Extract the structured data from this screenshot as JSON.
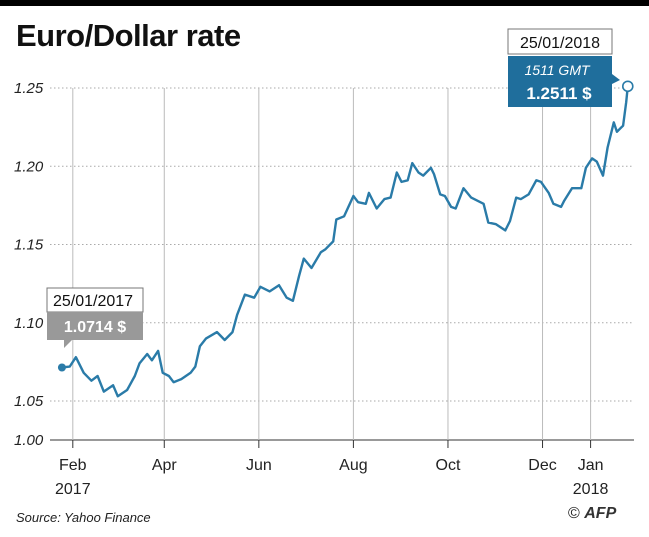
{
  "title": "Euro/Dollar rate",
  "source": "Source: Yahoo Finance",
  "credit": {
    "copyright_symbol": "©",
    "agency": "AFP"
  },
  "annotations": {
    "start": {
      "date": "25/01/2017",
      "value": "1.0714 $"
    },
    "end": {
      "date": "25/01/2018",
      "time": "1511 GMT",
      "value": "1.2511 $"
    }
  },
  "colors": {
    "line": "#2a7ba8",
    "label_gray": "#999999",
    "label_blue": "#1f6e9c"
  },
  "chart_data": {
    "type": "line",
    "title": "Euro/Dollar rate",
    "xlabel": "",
    "ylabel": "",
    "ylim": [
      1.0,
      1.25
    ],
    "grid": true,
    "y_ticks": [
      "1.25",
      "1.20",
      "1.15",
      "1.10",
      "1.05",
      "1.00"
    ],
    "x_ticks": [
      {
        "label": "Feb",
        "sub": "2017",
        "date": "2017-02-01"
      },
      {
        "label": "Apr",
        "sub": "",
        "date": "2017-04-01"
      },
      {
        "label": "Jun",
        "sub": "",
        "date": "2017-06-01"
      },
      {
        "label": "Aug",
        "sub": "",
        "date": "2017-08-01"
      },
      {
        "label": "Oct",
        "sub": "",
        "date": "2017-10-01"
      },
      {
        "label": "Dec",
        "sub": "",
        "date": "2017-12-01"
      },
      {
        "label": "Jan",
        "sub": "2018",
        "date": "2018-01-01"
      }
    ],
    "series": [
      {
        "points": [
          [
            "2017-01-25",
            1.0714
          ],
          [
            "2017-01-30",
            1.072
          ],
          [
            "2017-02-03",
            1.078
          ],
          [
            "2017-02-08",
            1.068
          ],
          [
            "2017-02-13",
            1.063
          ],
          [
            "2017-02-17",
            1.066
          ],
          [
            "2017-02-21",
            1.056
          ],
          [
            "2017-02-27",
            1.06
          ],
          [
            "2017-03-02",
            1.053
          ],
          [
            "2017-03-08",
            1.057
          ],
          [
            "2017-03-13",
            1.066
          ],
          [
            "2017-03-16",
            1.074
          ],
          [
            "2017-03-21",
            1.08
          ],
          [
            "2017-03-24",
            1.076
          ],
          [
            "2017-03-28",
            1.082
          ],
          [
            "2017-03-31",
            1.068
          ],
          [
            "2017-04-04",
            1.066
          ],
          [
            "2017-04-07",
            1.062
          ],
          [
            "2017-04-12",
            1.064
          ],
          [
            "2017-04-18",
            1.068
          ],
          [
            "2017-04-21",
            1.072
          ],
          [
            "2017-04-24",
            1.085
          ],
          [
            "2017-04-28",
            1.09
          ],
          [
            "2017-05-05",
            1.094
          ],
          [
            "2017-05-10",
            1.089
          ],
          [
            "2017-05-15",
            1.094
          ],
          [
            "2017-05-18",
            1.105
          ],
          [
            "2017-05-23",
            1.118
          ],
          [
            "2017-05-29",
            1.116
          ],
          [
            "2017-06-02",
            1.123
          ],
          [
            "2017-06-08",
            1.12
          ],
          [
            "2017-06-14",
            1.124
          ],
          [
            "2017-06-19",
            1.116
          ],
          [
            "2017-06-23",
            1.114
          ],
          [
            "2017-06-27",
            1.13
          ],
          [
            "2017-06-30",
            1.141
          ],
          [
            "2017-07-05",
            1.135
          ],
          [
            "2017-07-11",
            1.145
          ],
          [
            "2017-07-14",
            1.147
          ],
          [
            "2017-07-19",
            1.152
          ],
          [
            "2017-07-21",
            1.166
          ],
          [
            "2017-07-26",
            1.168
          ],
          [
            "2017-08-01",
            1.181
          ],
          [
            "2017-08-04",
            1.177
          ],
          [
            "2017-08-09",
            1.176
          ],
          [
            "2017-08-11",
            1.183
          ],
          [
            "2017-08-16",
            1.173
          ],
          [
            "2017-08-21",
            1.179
          ],
          [
            "2017-08-25",
            1.18
          ],
          [
            "2017-08-29",
            1.196
          ],
          [
            "2017-09-01",
            1.19
          ],
          [
            "2017-09-05",
            1.191
          ],
          [
            "2017-09-08",
            1.202
          ],
          [
            "2017-09-12",
            1.196
          ],
          [
            "2017-09-15",
            1.194
          ],
          [
            "2017-09-20",
            1.199
          ],
          [
            "2017-09-22",
            1.195
          ],
          [
            "2017-09-26",
            1.182
          ],
          [
            "2017-09-29",
            1.181
          ],
          [
            "2017-10-03",
            1.174
          ],
          [
            "2017-10-06",
            1.173
          ],
          [
            "2017-10-11",
            1.186
          ],
          [
            "2017-10-16",
            1.18
          ],
          [
            "2017-10-20",
            1.178
          ],
          [
            "2017-10-24",
            1.176
          ],
          [
            "2017-10-27",
            1.164
          ],
          [
            "2017-11-01",
            1.163
          ],
          [
            "2017-11-07",
            1.159
          ],
          [
            "2017-11-10",
            1.165
          ],
          [
            "2017-11-14",
            1.18
          ],
          [
            "2017-11-17",
            1.179
          ],
          [
            "2017-11-22",
            1.182
          ],
          [
            "2017-11-27",
            1.191
          ],
          [
            "2017-11-30",
            1.19
          ],
          [
            "2017-12-05",
            1.183
          ],
          [
            "2017-12-08",
            1.176
          ],
          [
            "2017-12-13",
            1.174
          ],
          [
            "2017-12-15",
            1.178
          ],
          [
            "2017-12-20",
            1.186
          ],
          [
            "2017-12-26",
            1.186
          ],
          [
            "2017-12-29",
            1.199
          ],
          [
            "2018-01-02",
            1.205
          ],
          [
            "2018-01-05",
            1.203
          ],
          [
            "2018-01-09",
            1.194
          ],
          [
            "2018-01-12",
            1.212
          ],
          [
            "2018-01-16",
            1.228
          ],
          [
            "2018-01-18",
            1.222
          ],
          [
            "2018-01-22",
            1.226
          ],
          [
            "2018-01-24",
            1.241
          ],
          [
            "2018-01-25",
            1.2511
          ]
        ]
      }
    ]
  }
}
